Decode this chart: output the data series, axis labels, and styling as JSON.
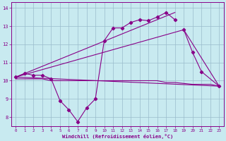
{
  "background_color": "#c8eaf0",
  "line_color": "#880088",
  "grid_color": "#99bbcc",
  "xlabel": "Windchill (Refroidissement éolien,°C)",
  "xlabel_color": "#880088",
  "tick_color": "#880088",
  "xmin": -0.5,
  "xmax": 23.5,
  "ymin": 7.5,
  "ymax": 14.3,
  "yticks": [
    8,
    9,
    10,
    11,
    12,
    13,
    14
  ],
  "xticks": [
    0,
    1,
    2,
    3,
    4,
    5,
    6,
    7,
    8,
    9,
    10,
    11,
    12,
    13,
    14,
    15,
    16,
    17,
    18,
    19,
    20,
    21,
    22,
    23
  ],
  "line1_x": [
    0,
    1,
    2,
    3,
    4,
    5,
    6,
    7,
    8,
    9,
    10,
    11,
    12,
    13,
    14,
    15,
    16,
    17,
    18,
    19,
    20,
    21,
    22,
    23
  ],
  "line1_y": [
    10.2,
    10.4,
    10.3,
    10.3,
    10.1,
    8.9,
    8.4,
    7.75,
    8.5,
    9.0,
    12.2,
    12.9,
    12.9,
    13.2,
    13.35,
    13.3,
    13.5,
    13.75,
    13.0,
    null,
    null,
    null,
    null,
    null
  ],
  "line2_x": [
    0,
    1,
    2,
    3,
    4,
    10,
    11,
    12,
    13,
    14,
    15,
    16,
    17,
    18,
    20,
    21,
    22,
    23
  ],
  "line2_y": [
    10.1,
    10.1,
    10.1,
    10.1,
    10.0,
    10.0,
    10.0,
    10.0,
    10.0,
    10.0,
    10.0,
    10.0,
    9.9,
    9.9,
    9.8,
    9.8,
    9.8,
    9.7
  ],
  "line3_x": [
    0,
    18
  ],
  "line3_y": [
    10.2,
    13.75
  ],
  "line4_x": [
    0,
    19,
    23
  ],
  "line4_y": [
    10.2,
    12.8,
    9.7
  ],
  "line5_x": [
    0,
    23
  ],
  "line5_y": [
    10.2,
    9.7
  ],
  "dots_x": [
    0,
    1,
    2,
    3,
    4,
    5,
    6,
    7,
    8,
    9,
    10,
    11,
    12,
    13,
    14,
    15,
    16,
    17,
    18,
    19,
    20,
    21,
    22,
    23
  ],
  "dots_y": [
    10.2,
    10.4,
    10.3,
    10.3,
    10.1,
    8.9,
    8.4,
    7.75,
    8.5,
    9.0,
    12.2,
    12.9,
    12.9,
    13.2,
    13.35,
    13.3,
    13.5,
    13.75,
    13.35,
    12.8,
    11.55,
    10.5,
    null,
    9.7
  ]
}
